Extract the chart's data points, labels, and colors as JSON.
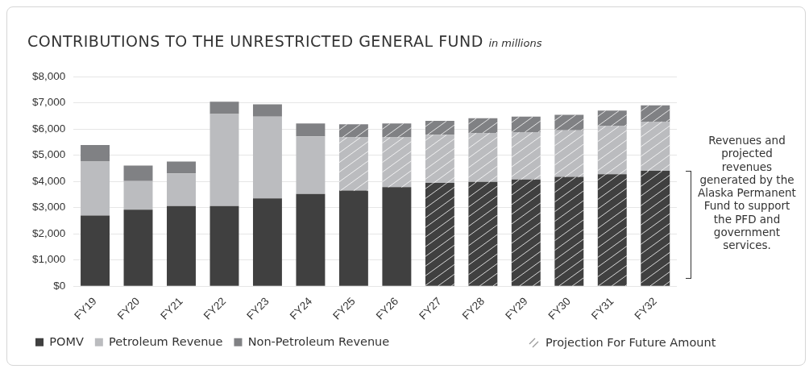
{
  "chart_data": {
    "type": "bar",
    "title": "CONTRIBUTIONS TO THE UNRESTRICTED GENERAL FUND",
    "subtitle": "in millions",
    "categories": [
      "FY19",
      "FY20",
      "FY21",
      "FY22",
      "FY23",
      "FY24",
      "FY25",
      "FY26",
      "FY27",
      "FY28",
      "FY29",
      "FY30",
      "FY31",
      "FY32"
    ],
    "stacked": true,
    "series": [
      {
        "name": "POMV",
        "color": "#404040",
        "values": [
          2700,
          2920,
          3060,
          3060,
          3350,
          3520,
          3650,
          3780,
          3940,
          3980,
          4070,
          4170,
          4270,
          4400
        ]
      },
      {
        "name": "Petroleum Revenue",
        "color": "#bbbcbf",
        "values": [
          2060,
          1090,
          1240,
          3510,
          3120,
          2200,
          2030,
          1900,
          1840,
          1870,
          1810,
          1780,
          1840,
          1880
        ]
      },
      {
        "name": "Non-Petroleum Revenue",
        "color": "#808184",
        "values": [
          630,
          590,
          460,
          470,
          470,
          490,
          500,
          530,
          530,
          560,
          590,
          590,
          590,
          620
        ]
      }
    ],
    "ylim": [
      0,
      8000
    ],
    "yticks": [
      {
        "value": 0,
        "label": "$0"
      },
      {
        "value": 1000,
        "label": "$1,000"
      },
      {
        "value": 2000,
        "label": "$2,000"
      },
      {
        "value": 3000,
        "label": "$3,000"
      },
      {
        "value": 4000,
        "label": "$4,000"
      },
      {
        "value": 5000,
        "label": "$5,000"
      },
      {
        "value": 6000,
        "label": "$6,000"
      },
      {
        "value": 7000,
        "label": "$7,000"
      },
      {
        "value": 8000,
        "label": "$8,000"
      }
    ],
    "grid": "y",
    "legend": "bottom",
    "annotations": [
      "Revenues and projected revenues generated by the Alaska Permanent Fund to support the PFD and government services.",
      "Projection For Future Amount"
    ]
  }
}
